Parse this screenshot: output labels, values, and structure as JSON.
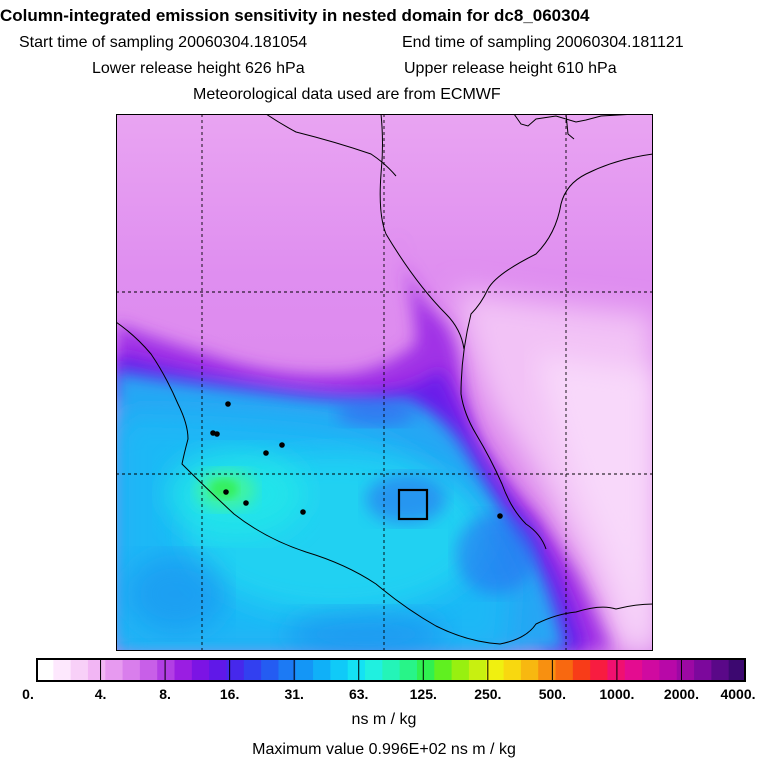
{
  "header": {
    "title": "Column-integrated emission sensitivity in nested domain for dc8_060304",
    "start_label": "Start time of sampling 20060304.181054",
    "end_label": "End time of sampling 20060304.181121",
    "lower_label": "Lower release height  626 hPa",
    "upper_label": "Upper release height  610 hPa",
    "met_label": "Meteorological data used are from ECMWF"
  },
  "colorbar": {
    "tick_labels": [
      "0.",
      "4.",
      "8.",
      "16.",
      "31.",
      "63.",
      "125.",
      "250.",
      "500.",
      "1000.",
      "2000.",
      "4000."
    ],
    "colors": [
      "#ffffff",
      "#fde8fd",
      "#f8d0f8",
      "#f2b6f4",
      "#e79af0",
      "#d97eec",
      "#c85fe8",
      "#b23ee4",
      "#9a1ee2",
      "#7c14e4",
      "#6018e8",
      "#4628ec",
      "#3240f0",
      "#245cf2",
      "#1c7af4",
      "#1496f6",
      "#10b0f8",
      "#10caf8",
      "#14e2f4",
      "#20f0e0",
      "#24f4b8",
      "#28f488",
      "#30f050",
      "#60f020",
      "#98f010",
      "#c8f010",
      "#f0f010",
      "#f8d810",
      "#f8b810",
      "#f89010",
      "#f86810",
      "#f83c18",
      "#f81c40",
      "#f01070",
      "#e40c90",
      "#d00aa0",
      "#b808a8",
      "#9c08a4",
      "#7c089c",
      "#5a0888",
      "#3c0870"
    ],
    "units": "ns m / kg"
  },
  "footer": {
    "max_value": "Maximum value  0.996E+02 ns m / kg"
  }
}
